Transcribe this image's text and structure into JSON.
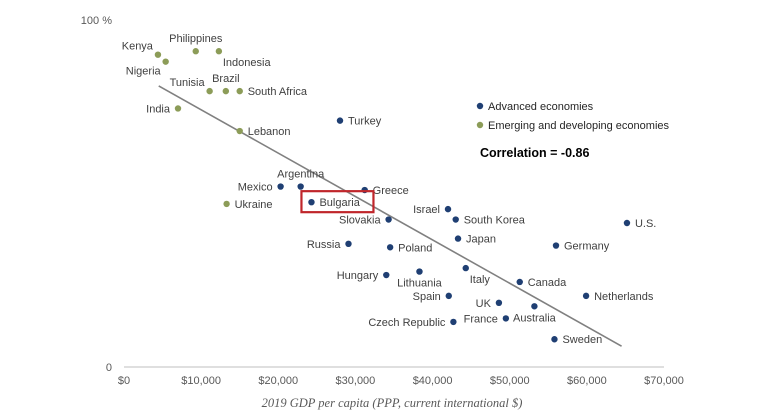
{
  "colors": {
    "advanced": "#1f3f73",
    "emerging": "#8c9c58",
    "trend": "#808080",
    "highlight": "#c0262b"
  },
  "chart_data": {
    "type": "scatter",
    "xlabel": "2019 GDP per capita (PPP, current international $)",
    "ylabel": "",
    "x_ticks": [
      "$0",
      "$10,000",
      "$20,000",
      "$30,000",
      "$40,000",
      "$50,000",
      "$60,000",
      "$70,000"
    ],
    "y_ticks": [
      "0",
      "100 %"
    ],
    "xlim": [
      0,
      70000
    ],
    "ylim": [
      0,
      100
    ],
    "annotation": "Correlation = -0.86",
    "legend_position": "top-right",
    "highlighted": "Bulgaria",
    "trendline": {
      "from": [
        4500,
        81
      ],
      "to": [
        64500,
        6
      ]
    },
    "series": [
      {
        "name": "Advanced economies",
        "color_key": "advanced",
        "points": [
          {
            "label": "Turkey",
            "x": 28000,
            "y": 71,
            "lp": "right"
          },
          {
            "label": "Argentina",
            "x": 22900,
            "y": 52,
            "lp": "above"
          },
          {
            "label": "Mexico",
            "x": 20300,
            "y": 52,
            "lp": "left"
          },
          {
            "label": "Greece",
            "x": 31200,
            "y": 51,
            "lp": "right"
          },
          {
            "label": "Bulgaria",
            "x": 24300,
            "y": 47.5,
            "lp": "right"
          },
          {
            "label": "Israel",
            "x": 42000,
            "y": 45.5,
            "lp": "left"
          },
          {
            "label": "Slovakia",
            "x": 34300,
            "y": 42.5,
            "lp": "left"
          },
          {
            "label": "South Korea",
            "x": 43000,
            "y": 42.5,
            "lp": "right"
          },
          {
            "label": "U.S.",
            "x": 65200,
            "y": 41.5,
            "lp": "right"
          },
          {
            "label": "Japan",
            "x": 43300,
            "y": 37,
            "lp": "right"
          },
          {
            "label": "Russia",
            "x": 29100,
            "y": 35.5,
            "lp": "left"
          },
          {
            "label": "Poland",
            "x": 34500,
            "y": 34.5,
            "lp": "right"
          },
          {
            "label": "Germany",
            "x": 56000,
            "y": 35,
            "lp": "right"
          },
          {
            "label": "Hungary",
            "x": 34000,
            "y": 26.5,
            "lp": "left"
          },
          {
            "label": "Lithuania",
            "x": 38300,
            "y": 27.5,
            "lp": "below"
          },
          {
            "label": "Italy",
            "x": 44300,
            "y": 28.5,
            "lp": "below-right"
          },
          {
            "label": "Canada",
            "x": 51300,
            "y": 24.5,
            "lp": "right"
          },
          {
            "label": "Spain",
            "x": 42100,
            "y": 20.5,
            "lp": "left"
          },
          {
            "label": "UK",
            "x": 48600,
            "y": 18.5,
            "lp": "left"
          },
          {
            "label": "Netherlands",
            "x": 59900,
            "y": 20.5,
            "lp": "right"
          },
          {
            "label": "Australia",
            "x": 53200,
            "y": 17.5,
            "lp": "below"
          },
          {
            "label": "France",
            "x": 49500,
            "y": 14,
            "lp": "left"
          },
          {
            "label": "Czech Republic",
            "x": 42700,
            "y": 13,
            "lp": "left"
          },
          {
            "label": "Sweden",
            "x": 55800,
            "y": 8,
            "lp": "right"
          }
        ]
      },
      {
        "name": "Emerging and developing economies",
        "color_key": "emerging",
        "points": [
          {
            "label": "Kenya",
            "x": 4400,
            "y": 90,
            "lp": "above-left"
          },
          {
            "label": "Nigeria",
            "x": 5400,
            "y": 88,
            "lp": "below-left"
          },
          {
            "label": "Philippines",
            "x": 9300,
            "y": 91,
            "lp": "above"
          },
          {
            "label": "Indonesia",
            "x": 12300,
            "y": 91,
            "lp": "below-right"
          },
          {
            "label": "Tunisia",
            "x": 11100,
            "y": 79.5,
            "lp": "above-left"
          },
          {
            "label": "Brazil",
            "x": 13200,
            "y": 79.5,
            "lp": "above"
          },
          {
            "label": "South Africa",
            "x": 15000,
            "y": 79.5,
            "lp": "right"
          },
          {
            "label": "India",
            "x": 7000,
            "y": 74.5,
            "lp": "left"
          },
          {
            "label": "Lebanon",
            "x": 15000,
            "y": 68,
            "lp": "right"
          },
          {
            "label": "Ukraine",
            "x": 13300,
            "y": 47,
            "lp": "right"
          }
        ]
      }
    ]
  }
}
